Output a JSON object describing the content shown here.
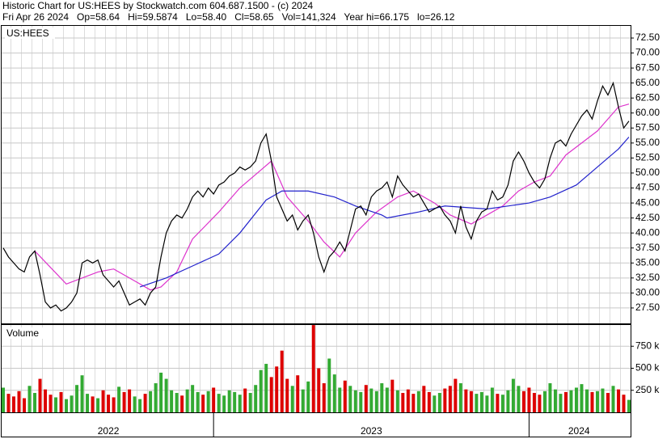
{
  "chart_data": {
    "type": "stock",
    "title": "Historic Chart for US:HEES by Stockwatch.com 604.687.1500 - (c) 2024",
    "subtitle": "Fri Apr 26 2024   Op=58.64   Hi=59.5874   Lo=58.40   Cl=58.65   Vol=141,324   Year hi=66.175   lo=26.12",
    "symbol": "US:HEES",
    "grid": true,
    "price": {
      "ylim": [
        24.93,
        74.66
      ],
      "yticks": [
        {
          "value": 27.5,
          "label": "27.50"
        },
        {
          "value": 30,
          "label": "30.00"
        },
        {
          "value": 32.5,
          "label": "32.50"
        },
        {
          "value": 35,
          "label": "35.00"
        },
        {
          "value": 37.5,
          "label": "37.50"
        },
        {
          "value": 40,
          "label": "40.00"
        },
        {
          "value": 42.5,
          "label": "42.50"
        },
        {
          "value": 45,
          "label": "45.00"
        },
        {
          "value": 47.5,
          "label": "47.50"
        },
        {
          "value": 50,
          "label": "50.00"
        },
        {
          "value": 52.5,
          "label": "52.50"
        },
        {
          "value": 55,
          "label": "55.00"
        },
        {
          "value": 57.5,
          "label": "57.50"
        },
        {
          "value": 60,
          "label": "60.00"
        },
        {
          "value": 62.5,
          "label": "62.50"
        },
        {
          "value": 65,
          "label": "65.00"
        },
        {
          "value": 67.5,
          "label": "67.50"
        },
        {
          "value": 70,
          "label": "70.00"
        },
        {
          "value": 72.5,
          "label": "72.50"
        }
      ],
      "color": "#000000",
      "close": [
        37.5,
        36,
        35,
        34,
        33.5,
        36,
        37,
        33,
        28.5,
        27.5,
        28,
        27,
        27.5,
        28.5,
        30,
        35,
        35.5,
        35,
        35.5,
        33,
        32,
        31,
        32,
        30,
        28,
        28.5,
        29,
        28,
        30,
        31,
        36,
        40,
        42,
        43,
        42.5,
        44,
        46,
        47,
        46,
        47.5,
        46.5,
        48,
        48.5,
        49.5,
        50,
        51,
        50.5,
        51,
        52,
        55,
        56.5,
        52,
        46,
        44,
        42,
        43,
        40.5,
        42,
        43,
        40,
        36,
        33.5,
        36,
        37,
        38.5,
        37,
        40.5,
        44,
        44.5,
        43,
        46,
        47,
        47.5,
        48.5,
        46,
        49.5,
        48,
        47,
        46,
        46.5,
        45,
        43.5,
        44,
        44.5,
        43,
        42,
        40,
        44.5,
        41,
        39,
        42,
        43.5,
        44,
        47,
        45.5,
        46,
        48,
        52,
        53.5,
        52,
        50,
        48.5,
        47.5,
        49,
        52.5,
        55,
        55.5,
        54.5,
        56.5,
        58,
        59.5,
        60.5,
        59,
        62,
        64.5,
        63,
        65,
        61,
        57.5,
        58.65
      ],
      "moving_averages": [
        {
          "color": "#dd33cc",
          "x": [
            6,
            12,
            18,
            21,
            25,
            28,
            30,
            33,
            36,
            41,
            45,
            49,
            51,
            54,
            58,
            61,
            64,
            67,
            71,
            75,
            78,
            82,
            85,
            89,
            92,
            95,
            98,
            101,
            104,
            107,
            110,
            113,
            117,
            119
          ],
          "values": [
            37,
            31.5,
            33.5,
            34,
            32,
            30.5,
            31,
            33.5,
            39,
            43.5,
            47.5,
            50.5,
            52,
            46,
            42,
            38.5,
            36,
            40,
            43.5,
            46,
            47,
            45,
            43,
            41.5,
            43,
            44.5,
            47,
            48.5,
            49.5,
            53,
            55,
            57,
            61,
            61.5
          ]
        },
        {
          "color": "#2222cc",
          "x": [
            26,
            31,
            36,
            41,
            45,
            50,
            53,
            58,
            63,
            67,
            72,
            73,
            79,
            84,
            92,
            96,
            100,
            104,
            109,
            113,
            117,
            119
          ],
          "values": [
            31,
            32.5,
            34.5,
            36.5,
            40,
            45.5,
            47,
            47,
            46,
            44.5,
            43,
            42.5,
            43.5,
            44.5,
            44,
            44.5,
            45,
            46,
            48,
            51,
            54,
            56
          ]
        }
      ]
    },
    "volume": {
      "title": "Volume",
      "ylim": [
        0,
        1000000
      ],
      "yticks": [
        {
          "value": 250000,
          "label": "250 k"
        },
        {
          "value": 500000,
          "label": "500 k"
        },
        {
          "value": 750000,
          "label": "750 k"
        }
      ],
      "up_color": "#33aa33",
      "down_color": "#dd0000",
      "values": [
        280000,
        210000,
        180000,
        240000,
        160000,
        300000,
        220000,
        380000,
        260000,
        200000,
        170000,
        230000,
        150000,
        190000,
        310000,
        420000,
        210000,
        180000,
        160000,
        250000,
        200000,
        170000,
        290000,
        230000,
        260000,
        180000,
        150000,
        210000,
        240000,
        330000,
        450000,
        380000,
        250000,
        220000,
        190000,
        260000,
        310000,
        230000,
        200000,
        240000,
        280000,
        210000,
        190000,
        250000,
        230000,
        200000,
        270000,
        220000,
        310000,
        480000,
        550000,
        400000,
        520000,
        700000,
        380000,
        300000,
        420000,
        260000,
        350000,
        990000,
        500000,
        330000,
        610000,
        430000,
        280000,
        360000,
        300000,
        250000,
        230000,
        310000,
        270000,
        240000,
        330000,
        280000,
        370000,
        250000,
        220000,
        260000,
        210000,
        240000,
        300000,
        230000,
        190000,
        220000,
        270000,
        300000,
        380000,
        330000,
        260000,
        240000,
        210000,
        230000,
        190000,
        280000,
        210000,
        200000,
        250000,
        380000,
        300000,
        240000,
        280000,
        220000,
        200000,
        240000,
        330000,
        260000,
        210000,
        230000,
        250000,
        280000,
        320000,
        260000,
        230000,
        240000,
        270000,
        220000,
        300000,
        260000,
        200000,
        141324
      ]
    },
    "periods": [
      {
        "label": "2022",
        "start": 0,
        "end": 40
      },
      {
        "label": "2023",
        "start": 40,
        "end": 100
      },
      {
        "label": "2024",
        "start": 100,
        "end": 119
      }
    ]
  }
}
